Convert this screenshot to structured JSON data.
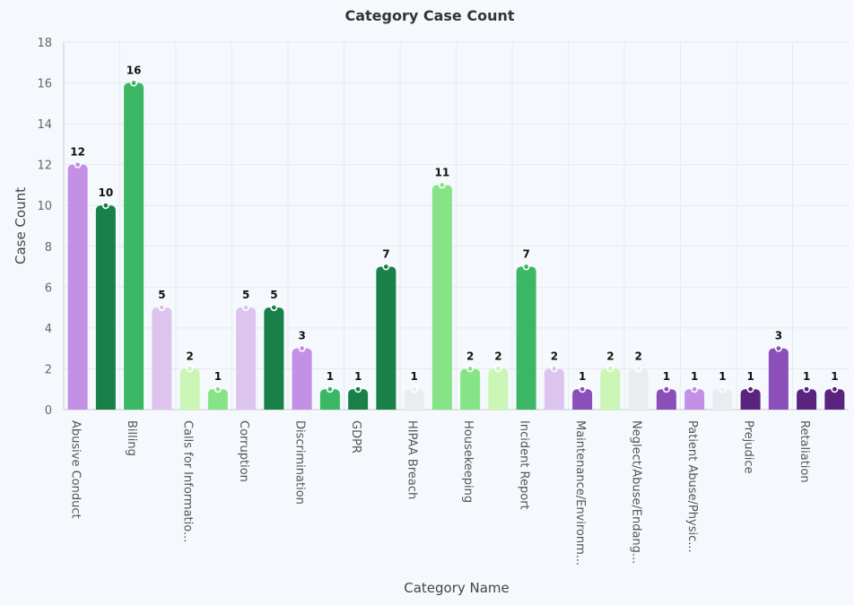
{
  "chart_data": {
    "type": "bar",
    "title": "Category Case Count",
    "xlabel": "Category Name",
    "ylabel": "Case Count",
    "ylim": [
      0,
      18
    ],
    "yticks": [
      "0",
      "2",
      "4",
      "6",
      "8",
      "10",
      "12",
      "14",
      "16",
      "18"
    ],
    "grid": true,
    "x_tick_labels": [
      "Abusive Conduct",
      "Billing",
      "Calls for Informatio...",
      "Corruption",
      "Discrimination",
      "GDPR",
      "HIPAA Breach",
      "Housekeeping",
      "Incident Report",
      "Maintenance/Environm...",
      "Neglect/Abuse/Endang...",
      "Patient Abuse/Physic...",
      "Prejudice",
      "Retaliation"
    ],
    "values": [
      12,
      10,
      16,
      5,
      2,
      1,
      5,
      5,
      3,
      1,
      1,
      7,
      1,
      11,
      2,
      2,
      7,
      2,
      1,
      2,
      2,
      1,
      1,
      1,
      1,
      3,
      1,
      1
    ],
    "data_labels": [
      "12",
      "10",
      "16",
      "5",
      "2",
      "1",
      "5",
      "5",
      "3",
      "1",
      "1",
      "7",
      "1",
      "11",
      "2",
      "2",
      "7",
      "2",
      "1",
      "2",
      "2",
      "1",
      "1",
      "1",
      "1",
      "3",
      "1",
      "1"
    ],
    "bar_colors": [
      "#c390e6",
      "#188048",
      "#3bb765",
      "#dcc4ef",
      "#c9f5b5",
      "#86e486",
      "#dcc4ef",
      "#188048",
      "#c390e6",
      "#3bb765",
      "#188048",
      "#188048",
      "#eaedf0",
      "#86e486",
      "#86e486",
      "#c9f5b5",
      "#3bb765",
      "#dcc4ef",
      "#8b4fb9",
      "#c9f5b5",
      "#eaedf0",
      "#8b4fb9",
      "#c390e6",
      "#eaedf0",
      "#5a237e",
      "#8b4fb9",
      "#5a237e",
      "#5a237e"
    ]
  }
}
